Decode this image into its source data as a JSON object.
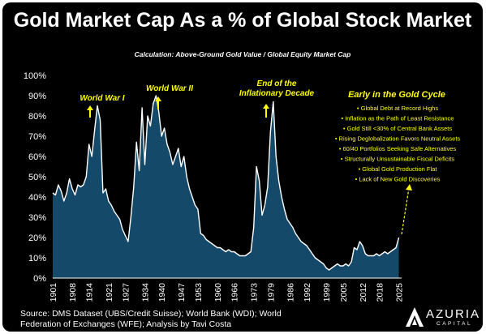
{
  "chart_data": {
    "type": "area",
    "title": "Gold Market Cap As a % of Global Stock Market",
    "subtitle": "Calculation: Above-Ground Gold Value / Global Equity Market Cap",
    "x_tick_labels": [
      "1901",
      "1908",
      "1914",
      "1921",
      "1927",
      "1934",
      "1940",
      "1947",
      "1953",
      "1960",
      "1966",
      "1973",
      "1979",
      "1986",
      "1992",
      "1999",
      "2005",
      "2012",
      "2018",
      "2025"
    ],
    "y_tick_labels": [
      "0%",
      "10%",
      "20%",
      "30%",
      "40%",
      "50%",
      "60%",
      "70%",
      "80%",
      "90%",
      "100%"
    ],
    "ylim": [
      0,
      100
    ],
    "xlim": [
      1901,
      2026
    ],
    "fill_color": "#15496a",
    "line_color": "#ffffff",
    "accent_color": "#ffff00",
    "x": [
      1901,
      1902,
      1903,
      1904,
      1905,
      1906,
      1907,
      1908,
      1909,
      1910,
      1911,
      1912,
      1913,
      1914,
      1915,
      1916,
      1917,
      1918,
      1919,
      1920,
      1921,
      1922,
      1923,
      1924,
      1925,
      1926,
      1927,
      1928,
      1929,
      1930,
      1931,
      1932,
      1933,
      1934,
      1935,
      1936,
      1937,
      1938,
      1939,
      1940,
      1941,
      1942,
      1943,
      1944,
      1945,
      1946,
      1947,
      1948,
      1949,
      1950,
      1951,
      1952,
      1953,
      1954,
      1955,
      1956,
      1957,
      1958,
      1959,
      1960,
      1961,
      1962,
      1963,
      1964,
      1965,
      1966,
      1967,
      1968,
      1969,
      1970,
      1971,
      1972,
      1973,
      1974,
      1975,
      1976,
      1977,
      1978,
      1979,
      1980,
      1981,
      1982,
      1983,
      1984,
      1985,
      1986,
      1987,
      1988,
      1989,
      1990,
      1991,
      1992,
      1993,
      1994,
      1995,
      1996,
      1997,
      1998,
      1999,
      2000,
      2001,
      2002,
      2003,
      2004,
      2005,
      2006,
      2007,
      2008,
      2009,
      2010,
      2011,
      2012,
      2013,
      2014,
      2015,
      2016,
      2017,
      2018,
      2019,
      2020,
      2021,
      2022,
      2023,
      2024,
      2025
    ],
    "values": [
      42,
      41,
      46,
      43,
      38,
      42,
      49,
      44,
      41,
      46,
      45,
      46,
      50,
      66,
      60,
      73,
      85,
      78,
      42,
      44,
      38,
      36,
      33,
      31,
      29,
      24,
      21,
      18,
      30,
      45,
      67,
      53,
      84,
      56,
      80,
      75,
      86,
      90,
      82,
      70,
      74,
      66,
      62,
      56,
      60,
      64,
      55,
      60,
      50,
      44,
      40,
      36,
      34,
      22,
      21,
      19,
      18,
      17,
      16,
      15,
      15,
      14,
      13,
      14,
      13,
      13,
      12,
      11,
      11,
      11,
      12,
      13,
      25,
      55,
      48,
      31,
      36,
      45,
      72,
      87,
      60,
      48,
      40,
      34,
      29,
      27,
      25,
      22,
      20,
      18,
      17,
      16,
      14,
      12,
      10,
      9,
      8,
      7,
      5,
      4,
      5,
      6,
      7,
      6,
      6,
      7,
      6,
      8,
      15,
      14,
      18,
      16,
      12,
      11,
      11,
      11,
      12,
      11,
      12,
      13,
      12,
      13,
      14,
      15,
      20
    ]
  },
  "annotations": {
    "ww1": "World War I",
    "ww2": "World War II",
    "inflation": [
      "End of the",
      "Inflationary Decade"
    ],
    "panel_title": "Early in the Gold Cycle",
    "bullets": [
      "Global Debt at Record Highs",
      "Inflation as the Path of Least Resistance",
      "Gold Still <30% of Central Bank Assets",
      "Rising Deglobalization Favors Neutral Assets",
      "60/40 Portfolios Seeking Safe Alternatives",
      "Structurally Unsustainable Fiscal Deficits",
      "Global Gold Production Flat",
      "Lack of New Gold Discoveries"
    ]
  },
  "source_lines": [
    "Source: DMS Dataset (UBS/Credit Suisse); World Bank (WDI); World",
    "Federation of Exchanges (WFE); Analysis by Tavi Costa"
  ],
  "logo": {
    "name": "AZURIA",
    "sub": "CAPITAL"
  }
}
